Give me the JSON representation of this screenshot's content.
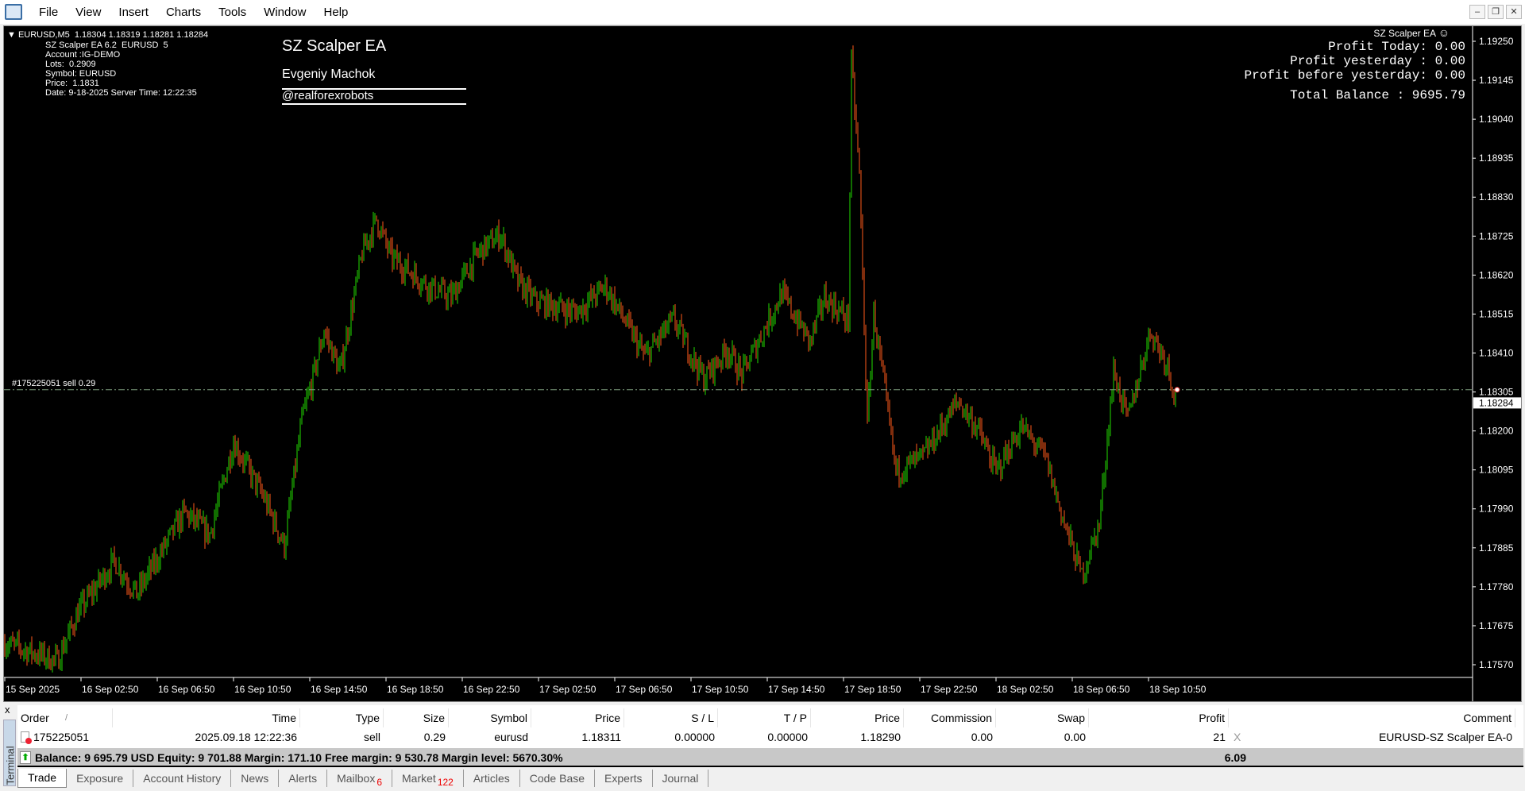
{
  "menu": [
    "File",
    "View",
    "Insert",
    "Charts",
    "Tools",
    "Window",
    "Help"
  ],
  "chart_info": {
    "header": "EURUSD,M5  1.18304 1.18319 1.18281 1.18284",
    "lines": [
      "SZ Scalper EA 6.2  EURUSD  5",
      "Account :IG-DEMO",
      "Lots:  0.2909",
      "Symbol: EURUSD",
      "Price:  1.1831",
      "Date: 9-18-2025 Server Time: 12:22:35"
    ]
  },
  "ea_panel": {
    "title": "SZ Scalper EA",
    "author": "Evgeniy Machok",
    "site": "@realforexrobots"
  },
  "ea_badge": "SZ Scalper EA",
  "ea_badge_icon": "smiley-icon",
  "profit_panel": {
    "today": "Profit Today: 0.00",
    "yesterday": "Profit yesterday : 0.00",
    "before": "Profit before yesterday: 0.00",
    "total": "Total Balance : 9695.79"
  },
  "order_line": {
    "label": "#175225051 sell 0.29",
    "price": 1.18311
  },
  "current_price": "1.18284",
  "colors": {
    "bull": "#22dd00",
    "bear": "#ff5a1a",
    "background": "#000000",
    "order_line": "#7fa07f"
  },
  "chart_data": {
    "type": "ohlc-bar",
    "symbol": "EURUSD",
    "timeframe": "M5",
    "ylim": [
      1.1752,
      1.193
    ],
    "price_ticks": [
      "1.19250",
      "1.19145",
      "1.19040",
      "1.18935",
      "1.18830",
      "1.18725",
      "1.18620",
      "1.18515",
      "1.18410",
      "1.18305",
      "1.18200",
      "1.18095",
      "1.17990",
      "1.17885",
      "1.17780",
      "1.17675",
      "1.17570"
    ],
    "time_ticks": [
      "15 Sep 2025",
      "16 Sep 02:50",
      "16 Sep 06:50",
      "16 Sep 10:50",
      "16 Sep 14:50",
      "16 Sep 18:50",
      "16 Sep 22:50",
      "17 Sep 02:50",
      "17 Sep 06:50",
      "17 Sep 10:50",
      "17 Sep 14:50",
      "17 Sep 18:50",
      "17 Sep 22:50",
      "18 Sep 02:50",
      "18 Sep 06:50",
      "18 Sep 10:50"
    ],
    "start": "2025-09-15 22:50",
    "price_path": [
      [
        "2025-09-15 22:50",
        1.1763
      ],
      [
        "2025-09-16 01:40",
        1.1758
      ],
      [
        "2025-09-16 02:45",
        1.1771
      ],
      [
        "2025-09-16 04:40",
        1.1785
      ],
      [
        "2025-09-16 05:50",
        1.1776
      ],
      [
        "2025-09-16 08:20",
        1.1798
      ],
      [
        "2025-09-16 09:40",
        1.1792
      ],
      [
        "2025-09-16 10:55",
        1.1817
      ],
      [
        "2025-09-16 12:30",
        1.1802
      ],
      [
        "2025-09-16 13:35",
        1.1789
      ],
      [
        "2025-09-16 14:30",
        1.1823
      ],
      [
        "2025-09-16 15:10",
        1.1836
      ],
      [
        "2025-09-16 15:40",
        1.1847
      ],
      [
        "2025-09-16 16:30",
        1.1836
      ],
      [
        "2025-09-16 17:40",
        1.1868
      ],
      [
        "2025-09-16 18:25",
        1.1877
      ],
      [
        "2025-09-16 19:10",
        1.1867
      ],
      [
        "2025-09-16 21:10",
        1.1859
      ],
      [
        "2025-09-16 22:20",
        1.1856
      ],
      [
        "2025-09-16 23:45",
        1.1868
      ],
      [
        "2025-09-17 00:55",
        1.1873
      ],
      [
        "2025-09-17 01:50",
        1.186
      ],
      [
        "2025-09-17 02:45",
        1.1855
      ],
      [
        "2025-09-17 04:55",
        1.1852
      ],
      [
        "2025-09-17 06:25",
        1.1859
      ],
      [
        "2025-09-17 08:30",
        1.184
      ],
      [
        "2025-09-17 10:00",
        1.185
      ],
      [
        "2025-09-17 11:35",
        1.1834
      ],
      [
        "2025-09-17 12:50",
        1.1842
      ],
      [
        "2025-09-17 13:35",
        1.1835
      ],
      [
        "2025-09-17 15:40",
        1.1857
      ],
      [
        "2025-09-17 17:10",
        1.1844
      ],
      [
        "2025-09-17 17:55",
        1.1856
      ],
      [
        "2025-09-17 19:10",
        1.185
      ],
      [
        "2025-09-17 19:20",
        1.1919
      ],
      [
        "2025-09-17 19:45",
        1.1889
      ],
      [
        "2025-09-17 20:10",
        1.1821
      ],
      [
        "2025-09-17 20:30",
        1.1852
      ],
      [
        "2025-09-17 21:40",
        1.1809
      ],
      [
        "2025-09-17 23:05",
        1.1813
      ],
      [
        "2025-09-18 00:55",
        1.1828
      ],
      [
        "2025-09-18 01:55",
        1.1821
      ],
      [
        "2025-09-18 02:55",
        1.1809
      ],
      [
        "2025-09-18 04:15",
        1.1821
      ],
      [
        "2025-09-18 05:30",
        1.1813
      ],
      [
        "2025-09-18 06:30",
        1.1795
      ],
      [
        "2025-09-18 07:25",
        1.1781
      ],
      [
        "2025-09-18 08:20",
        1.1795
      ],
      [
        "2025-09-18 09:05",
        1.1836
      ],
      [
        "2025-09-18 09:50",
        1.1823
      ],
      [
        "2025-09-18 11:00",
        1.1847
      ],
      [
        "2025-09-18 11:55",
        1.1838
      ],
      [
        "2025-09-18 12:20",
        1.18284
      ]
    ]
  },
  "terminal": {
    "label": "Terminal",
    "close": "x",
    "columns": [
      "Order",
      "Time",
      "Type",
      "Size",
      "Symbol",
      "Price",
      "S / L",
      "T / P",
      "Price",
      "Commission",
      "Swap",
      "Profit",
      "Comment"
    ],
    "sort_indicator": "/",
    "row": [
      "175225051",
      "2025.09.18 12:22:36",
      "sell",
      "0.29",
      "eurusd",
      "1.18311",
      "0.00000",
      "0.00000",
      "1.18290",
      "0.00",
      "0.00",
      "21",
      "EURUSD-SZ Scalper EA-0"
    ],
    "close_order": "X",
    "balance": "Balance: 9 695.79 USD  Equity: 9 701.88  Margin: 171.10  Free margin: 9 530.78  Margin level: 5670.30%",
    "total_profit": "6.09",
    "tabs": [
      {
        "label": "Trade",
        "active": true
      },
      {
        "label": "Exposure"
      },
      {
        "label": "Account History"
      },
      {
        "label": "News"
      },
      {
        "label": "Alerts"
      },
      {
        "label": "Mailbox",
        "badge": "6"
      },
      {
        "label": "Market",
        "badge": "122"
      },
      {
        "label": "Articles"
      },
      {
        "label": "Code Base"
      },
      {
        "label": "Experts"
      },
      {
        "label": "Journal"
      }
    ]
  }
}
